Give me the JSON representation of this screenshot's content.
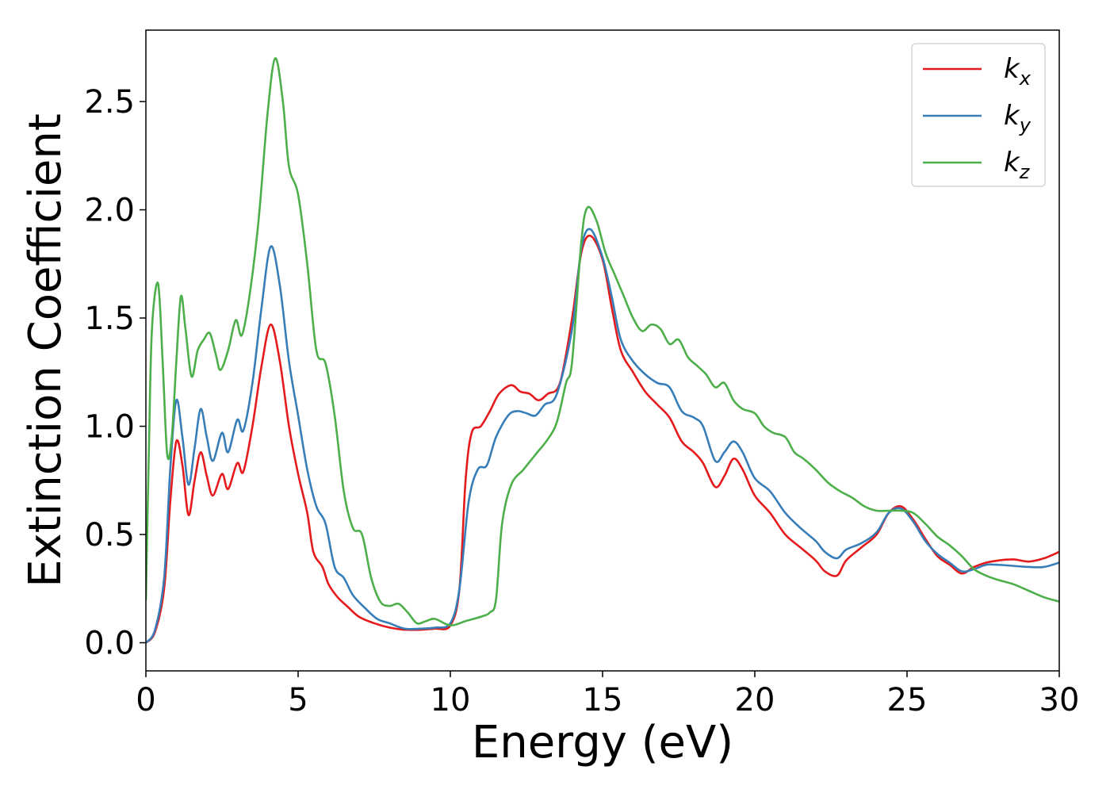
{
  "chart_data": {
    "type": "line",
    "title": "",
    "xlabel": "Energy (eV)",
    "ylabel": "Extinction Coefficient",
    "xlim": [
      0,
      30
    ],
    "ylim": [
      -0.13,
      2.83
    ],
    "xticks": [
      0,
      5,
      10,
      15,
      20,
      25,
      30
    ],
    "xtick_labels": [
      "0",
      "5",
      "10",
      "15",
      "20",
      "25",
      "30"
    ],
    "yticks": [
      0.0,
      0.5,
      1.0,
      1.5,
      2.0,
      2.5
    ],
    "ytick_labels": [
      "0.0",
      "0.5",
      "1.0",
      "1.5",
      "2.0",
      "2.5"
    ],
    "grid": false,
    "legend_position": "top-right",
    "series": [
      {
        "name": "k_x",
        "label_main": "k",
        "label_sub": "x",
        "color": "#e41a1c",
        "points": [
          [
            0,
            0
          ],
          [
            0.3,
            0.05
          ],
          [
            0.6,
            0.25
          ],
          [
            0.8,
            0.65
          ],
          [
            1.0,
            0.93
          ],
          [
            1.2,
            0.82
          ],
          [
            1.4,
            0.59
          ],
          [
            1.6,
            0.75
          ],
          [
            1.8,
            0.88
          ],
          [
            2.0,
            0.77
          ],
          [
            2.2,
            0.68
          ],
          [
            2.5,
            0.78
          ],
          [
            2.7,
            0.71
          ],
          [
            3.0,
            0.83
          ],
          [
            3.2,
            0.79
          ],
          [
            3.5,
            1.0
          ],
          [
            3.8,
            1.28
          ],
          [
            4.1,
            1.47
          ],
          [
            4.4,
            1.3
          ],
          [
            4.7,
            1.0
          ],
          [
            5.0,
            0.78
          ],
          [
            5.3,
            0.6
          ],
          [
            5.5,
            0.42
          ],
          [
            5.8,
            0.35
          ],
          [
            6.0,
            0.27
          ],
          [
            6.3,
            0.21
          ],
          [
            6.6,
            0.17
          ],
          [
            7.0,
            0.12
          ],
          [
            7.5,
            0.09
          ],
          [
            8.0,
            0.07
          ],
          [
            8.5,
            0.06
          ],
          [
            9.0,
            0.06
          ],
          [
            9.5,
            0.065
          ],
          [
            10.0,
            0.08
          ],
          [
            10.3,
            0.25
          ],
          [
            10.5,
            0.75
          ],
          [
            10.7,
            0.97
          ],
          [
            11.0,
            1.0
          ],
          [
            11.3,
            1.07
          ],
          [
            11.6,
            1.15
          ],
          [
            12.0,
            1.19
          ],
          [
            12.3,
            1.16
          ],
          [
            12.6,
            1.15
          ],
          [
            12.9,
            1.12
          ],
          [
            13.2,
            1.15
          ],
          [
            13.6,
            1.2
          ],
          [
            14.0,
            1.5
          ],
          [
            14.3,
            1.8
          ],
          [
            14.6,
            1.88
          ],
          [
            15.0,
            1.77
          ],
          [
            15.3,
            1.55
          ],
          [
            15.6,
            1.35
          ],
          [
            16.0,
            1.25
          ],
          [
            16.4,
            1.16
          ],
          [
            16.8,
            1.1
          ],
          [
            17.2,
            1.04
          ],
          [
            17.6,
            0.93
          ],
          [
            18.0,
            0.88
          ],
          [
            18.3,
            0.83
          ],
          [
            18.7,
            0.72
          ],
          [
            19.0,
            0.77
          ],
          [
            19.3,
            0.85
          ],
          [
            19.6,
            0.8
          ],
          [
            20.0,
            0.68
          ],
          [
            20.5,
            0.6
          ],
          [
            21.0,
            0.5
          ],
          [
            21.5,
            0.44
          ],
          [
            22.0,
            0.38
          ],
          [
            22.3,
            0.33
          ],
          [
            22.7,
            0.31
          ],
          [
            23.0,
            0.38
          ],
          [
            23.5,
            0.44
          ],
          [
            24.0,
            0.5
          ],
          [
            24.4,
            0.6
          ],
          [
            24.8,
            0.63
          ],
          [
            25.2,
            0.57
          ],
          [
            25.6,
            0.48
          ],
          [
            26.0,
            0.4
          ],
          [
            26.4,
            0.36
          ],
          [
            26.8,
            0.32
          ],
          [
            27.2,
            0.35
          ],
          [
            27.6,
            0.37
          ],
          [
            28.0,
            0.38
          ],
          [
            28.5,
            0.385
          ],
          [
            29.0,
            0.375
          ],
          [
            29.5,
            0.39
          ],
          [
            30.0,
            0.42
          ]
        ]
      },
      {
        "name": "k_y",
        "label_main": "k",
        "label_sub": "y",
        "color": "#377eb8",
        "points": [
          [
            0,
            0
          ],
          [
            0.3,
            0.06
          ],
          [
            0.6,
            0.3
          ],
          [
            0.8,
            0.8
          ],
          [
            1.0,
            1.12
          ],
          [
            1.2,
            0.95
          ],
          [
            1.4,
            0.73
          ],
          [
            1.6,
            0.9
          ],
          [
            1.8,
            1.08
          ],
          [
            2.0,
            0.95
          ],
          [
            2.2,
            0.84
          ],
          [
            2.5,
            0.97
          ],
          [
            2.7,
            0.88
          ],
          [
            3.0,
            1.03
          ],
          [
            3.2,
            0.98
          ],
          [
            3.5,
            1.2
          ],
          [
            3.8,
            1.55
          ],
          [
            4.1,
            1.83
          ],
          [
            4.4,
            1.65
          ],
          [
            4.7,
            1.3
          ],
          [
            5.0,
            1.05
          ],
          [
            5.3,
            0.8
          ],
          [
            5.6,
            0.63
          ],
          [
            5.9,
            0.55
          ],
          [
            6.2,
            0.35
          ],
          [
            6.5,
            0.3
          ],
          [
            6.8,
            0.22
          ],
          [
            7.2,
            0.16
          ],
          [
            7.6,
            0.11
          ],
          [
            8.0,
            0.09
          ],
          [
            8.5,
            0.065
          ],
          [
            9.0,
            0.065
          ],
          [
            9.5,
            0.07
          ],
          [
            10.0,
            0.09
          ],
          [
            10.3,
            0.25
          ],
          [
            10.6,
            0.65
          ],
          [
            10.9,
            0.8
          ],
          [
            11.2,
            0.82
          ],
          [
            11.5,
            0.95
          ],
          [
            11.9,
            1.05
          ],
          [
            12.2,
            1.07
          ],
          [
            12.5,
            1.06
          ],
          [
            12.8,
            1.05
          ],
          [
            13.1,
            1.1
          ],
          [
            13.5,
            1.15
          ],
          [
            14.0,
            1.45
          ],
          [
            14.3,
            1.82
          ],
          [
            14.6,
            1.91
          ],
          [
            15.0,
            1.78
          ],
          [
            15.3,
            1.6
          ],
          [
            15.6,
            1.4
          ],
          [
            16.0,
            1.3
          ],
          [
            16.4,
            1.24
          ],
          [
            16.8,
            1.2
          ],
          [
            17.2,
            1.18
          ],
          [
            17.6,
            1.07
          ],
          [
            18.0,
            1.04
          ],
          [
            18.3,
            1.0
          ],
          [
            18.7,
            0.84
          ],
          [
            19.0,
            0.88
          ],
          [
            19.3,
            0.93
          ],
          [
            19.6,
            0.88
          ],
          [
            20.0,
            0.76
          ],
          [
            20.5,
            0.7
          ],
          [
            21.0,
            0.6
          ],
          [
            21.5,
            0.53
          ],
          [
            22.0,
            0.47
          ],
          [
            22.3,
            0.42
          ],
          [
            22.7,
            0.39
          ],
          [
            23.0,
            0.43
          ],
          [
            23.5,
            0.46
          ],
          [
            24.0,
            0.51
          ],
          [
            24.4,
            0.6
          ],
          [
            24.8,
            0.62
          ],
          [
            25.2,
            0.56
          ],
          [
            25.6,
            0.47
          ],
          [
            26.0,
            0.41
          ],
          [
            26.4,
            0.37
          ],
          [
            26.8,
            0.33
          ],
          [
            27.2,
            0.34
          ],
          [
            27.6,
            0.36
          ],
          [
            28.0,
            0.36
          ],
          [
            28.5,
            0.355
          ],
          [
            29.0,
            0.35
          ],
          [
            29.5,
            0.35
          ],
          [
            30.0,
            0.37
          ]
        ]
      },
      {
        "name": "k_z",
        "label_main": "k",
        "label_sub": "z",
        "color": "#4daf4a",
        "points": [
          [
            0,
            0.2
          ],
          [
            0.1,
            0.9
          ],
          [
            0.2,
            1.45
          ],
          [
            0.4,
            1.66
          ],
          [
            0.55,
            1.3
          ],
          [
            0.7,
            0.87
          ],
          [
            0.85,
            0.95
          ],
          [
            1.0,
            1.3
          ],
          [
            1.15,
            1.6
          ],
          [
            1.3,
            1.45
          ],
          [
            1.5,
            1.23
          ],
          [
            1.7,
            1.35
          ],
          [
            1.9,
            1.4
          ],
          [
            2.1,
            1.43
          ],
          [
            2.3,
            1.33
          ],
          [
            2.45,
            1.26
          ],
          [
            2.7,
            1.35
          ],
          [
            2.95,
            1.49
          ],
          [
            3.15,
            1.42
          ],
          [
            3.4,
            1.6
          ],
          [
            3.7,
            1.95
          ],
          [
            4.0,
            2.45
          ],
          [
            4.25,
            2.7
          ],
          [
            4.5,
            2.5
          ],
          [
            4.7,
            2.2
          ],
          [
            5.0,
            2.07
          ],
          [
            5.3,
            1.75
          ],
          [
            5.6,
            1.35
          ],
          [
            5.9,
            1.29
          ],
          [
            6.2,
            1.05
          ],
          [
            6.5,
            0.7
          ],
          [
            6.8,
            0.53
          ],
          [
            7.1,
            0.5
          ],
          [
            7.4,
            0.3
          ],
          [
            7.7,
            0.19
          ],
          [
            8.0,
            0.17
          ],
          [
            8.3,
            0.18
          ],
          [
            8.6,
            0.14
          ],
          [
            8.9,
            0.09
          ],
          [
            9.2,
            0.1
          ],
          [
            9.5,
            0.11
          ],
          [
            10.0,
            0.08
          ],
          [
            10.5,
            0.1
          ],
          [
            11.0,
            0.12
          ],
          [
            11.3,
            0.14
          ],
          [
            11.5,
            0.2
          ],
          [
            11.7,
            0.55
          ],
          [
            12.0,
            0.73
          ],
          [
            12.4,
            0.8
          ],
          [
            12.8,
            0.87
          ],
          [
            13.2,
            0.94
          ],
          [
            13.5,
            1.02
          ],
          [
            13.8,
            1.2
          ],
          [
            14.0,
            1.3
          ],
          [
            14.3,
            1.85
          ],
          [
            14.5,
            2.01
          ],
          [
            14.8,
            1.95
          ],
          [
            15.1,
            1.8
          ],
          [
            15.4,
            1.7
          ],
          [
            15.7,
            1.6
          ],
          [
            16.0,
            1.5
          ],
          [
            16.3,
            1.44
          ],
          [
            16.6,
            1.47
          ],
          [
            16.9,
            1.45
          ],
          [
            17.2,
            1.38
          ],
          [
            17.5,
            1.4
          ],
          [
            17.8,
            1.32
          ],
          [
            18.1,
            1.28
          ],
          [
            18.4,
            1.24
          ],
          [
            18.7,
            1.18
          ],
          [
            19.0,
            1.2
          ],
          [
            19.3,
            1.12
          ],
          [
            19.6,
            1.08
          ],
          [
            20.0,
            1.06
          ],
          [
            20.3,
            1.0
          ],
          [
            20.6,
            0.97
          ],
          [
            21.0,
            0.95
          ],
          [
            21.3,
            0.88
          ],
          [
            21.6,
            0.85
          ],
          [
            22.0,
            0.8
          ],
          [
            22.4,
            0.74
          ],
          [
            22.8,
            0.7
          ],
          [
            23.2,
            0.67
          ],
          [
            23.6,
            0.63
          ],
          [
            24.0,
            0.61
          ],
          [
            24.4,
            0.61
          ],
          [
            24.8,
            0.61
          ],
          [
            25.2,
            0.6
          ],
          [
            25.6,
            0.55
          ],
          [
            26.0,
            0.49
          ],
          [
            26.4,
            0.45
          ],
          [
            26.8,
            0.4
          ],
          [
            27.2,
            0.34
          ],
          [
            27.6,
            0.31
          ],
          [
            28.0,
            0.29
          ],
          [
            28.5,
            0.27
          ],
          [
            29.0,
            0.24
          ],
          [
            29.5,
            0.21
          ],
          [
            30.0,
            0.19
          ]
        ]
      }
    ]
  }
}
